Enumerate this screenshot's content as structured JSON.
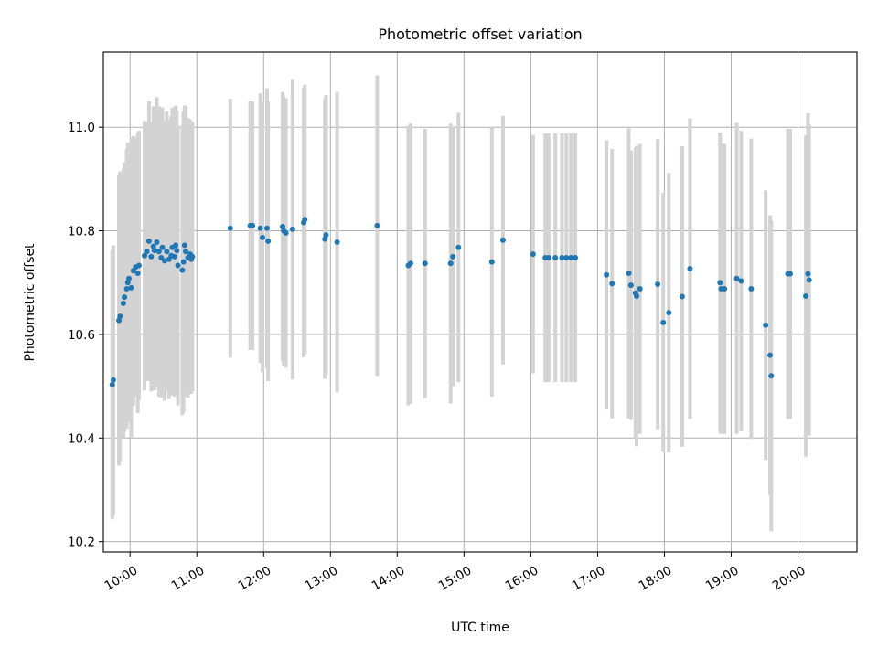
{
  "chart_data": {
    "type": "scatter",
    "title": "Photometric offset variation",
    "xlabel": "UTC time",
    "ylabel": "Photometric offset",
    "x_range": [
      "09:36",
      "20:53"
    ],
    "ylim": [
      10.18,
      11.145
    ],
    "grid": true,
    "x_ticks": [
      "10:00",
      "11:00",
      "12:00",
      "13:00",
      "14:00",
      "15:00",
      "16:00",
      "17:00",
      "18:00",
      "19:00",
      "20:00"
    ],
    "y_ticks": [
      10.2,
      10.4,
      10.6,
      10.8,
      11.0
    ],
    "y_tick_labels": [
      "10.2",
      "10.4",
      "10.6",
      "10.8",
      "11.0"
    ],
    "errorbar_color": "#d3d3d3",
    "point_color": "#1f77b4",
    "series": [
      {
        "columns": [
          "time",
          "offset",
          "error"
        ],
        "points": [
          [
            "09:44",
            10.503,
            0.26
          ],
          [
            "09:45",
            10.512,
            0.26
          ],
          [
            "09:50",
            10.627,
            0.28
          ],
          [
            "09:51",
            10.635,
            0.28
          ],
          [
            "09:54",
            10.66,
            0.26
          ],
          [
            "09:55",
            10.672,
            0.26
          ],
          [
            "09:57",
            10.688,
            0.27
          ],
          [
            "09:58",
            10.7,
            0.27
          ],
          [
            "09:59",
            10.708,
            0.26
          ],
          [
            "10:01",
            10.69,
            0.29
          ],
          [
            "10:03",
            10.723,
            0.26
          ],
          [
            "10:05",
            10.73,
            0.25
          ],
          [
            "10:07",
            10.718,
            0.27
          ],
          [
            "10:08",
            10.733,
            0.26
          ],
          [
            "10:13",
            10.752,
            0.26
          ],
          [
            "10:15",
            10.76,
            0.25
          ],
          [
            "10:17",
            10.78,
            0.27
          ],
          [
            "10:19",
            10.75,
            0.26
          ],
          [
            "10:21",
            10.77,
            0.27
          ],
          [
            "10:22",
            10.762,
            0.27
          ],
          [
            "10:24",
            10.778,
            0.28
          ],
          [
            "10:26",
            10.76,
            0.28
          ],
          [
            "10:28",
            10.748,
            0.27
          ],
          [
            "10:29",
            10.768,
            0.27
          ],
          [
            "10:31",
            10.742,
            0.27
          ],
          [
            "10:33",
            10.76,
            0.27
          ],
          [
            "10:35",
            10.745,
            0.27
          ],
          [
            "10:37",
            10.752,
            0.27
          ],
          [
            "10:38",
            10.768,
            0.27
          ],
          [
            "10:40",
            10.75,
            0.27
          ],
          [
            "10:41",
            10.772,
            0.27
          ],
          [
            "10:42",
            10.762,
            0.27
          ],
          [
            "10:43",
            10.733,
            0.27
          ],
          [
            "10:47",
            10.724,
            0.28
          ],
          [
            "10:48",
            10.74,
            0.29
          ],
          [
            "10:49",
            10.772,
            0.27
          ],
          [
            "10:50",
            10.76,
            0.28
          ],
          [
            "10:52",
            10.748,
            0.27
          ],
          [
            "10:54",
            10.755,
            0.26
          ],
          [
            "10:55",
            10.745,
            0.26
          ],
          [
            "10:56",
            10.75,
            0.26
          ],
          [
            "11:30",
            10.805,
            0.25
          ],
          [
            "11:48",
            10.81,
            0.24
          ],
          [
            "11:50",
            10.81,
            0.24
          ],
          [
            "11:57",
            10.805,
            0.26
          ],
          [
            "11:59",
            10.787,
            0.26
          ],
          [
            "12:03",
            10.805,
            0.27
          ],
          [
            "12:04",
            10.78,
            0.27
          ],
          [
            "12:17",
            10.808,
            0.26
          ],
          [
            "12:18",
            10.8,
            0.26
          ],
          [
            "12:20",
            10.796,
            0.26
          ],
          [
            "12:26",
            10.803,
            0.29
          ],
          [
            "12:36",
            10.816,
            0.26
          ],
          [
            "12:37",
            10.822,
            0.26
          ],
          [
            "12:55",
            10.784,
            0.27
          ],
          [
            "12:56",
            10.792,
            0.27
          ],
          [
            "13:06",
            10.778,
            0.29
          ],
          [
            "13:42",
            10.81,
            0.29
          ],
          [
            "14:10",
            10.733,
            0.27
          ],
          [
            "14:12",
            10.737,
            0.27
          ],
          [
            "14:25",
            10.737,
            0.26
          ],
          [
            "14:48",
            10.737,
            0.27
          ],
          [
            "14:50",
            10.75,
            0.25
          ],
          [
            "14:55",
            10.768,
            0.26
          ],
          [
            "15:25",
            10.74,
            0.26
          ],
          [
            "15:35",
            10.782,
            0.24
          ],
          [
            "16:02",
            10.755,
            0.23
          ],
          [
            "16:13",
            10.748,
            0.24
          ],
          [
            "16:16",
            10.748,
            0.24
          ],
          [
            "16:22",
            10.748,
            0.24
          ],
          [
            "16:28",
            10.748,
            0.24
          ],
          [
            "16:32",
            10.748,
            0.24
          ],
          [
            "16:36",
            10.748,
            0.24
          ],
          [
            "16:40",
            10.748,
            0.24
          ],
          [
            "17:08",
            10.715,
            0.26
          ],
          [
            "17:13",
            10.698,
            0.26
          ],
          [
            "17:28",
            10.718,
            0.28
          ],
          [
            "17:30",
            10.695,
            0.26
          ],
          [
            "17:34",
            10.68,
            0.28
          ],
          [
            "17:35",
            10.674,
            0.29
          ],
          [
            "17:38",
            10.688,
            0.28
          ],
          [
            "17:54",
            10.697,
            0.28
          ],
          [
            "17:59",
            10.623,
            0.25
          ],
          [
            "18:04",
            10.642,
            0.27
          ],
          [
            "18:16",
            10.673,
            0.29
          ],
          [
            "18:23",
            10.727,
            0.29
          ],
          [
            "18:50",
            10.7,
            0.29
          ],
          [
            "18:51",
            10.688,
            0.28
          ],
          [
            "18:54",
            10.688,
            0.28
          ],
          [
            "19:05",
            10.708,
            0.3
          ],
          [
            "19:09",
            10.703,
            0.29
          ],
          [
            "19:18",
            10.688,
            0.29
          ],
          [
            "19:31",
            10.618,
            0.26
          ],
          [
            "19:35",
            10.56,
            0.27
          ],
          [
            "19:36",
            10.52,
            0.3
          ],
          [
            "19:51",
            10.717,
            0.28
          ],
          [
            "19:53",
            10.717,
            0.28
          ],
          [
            "20:07",
            10.674,
            0.31
          ],
          [
            "20:09",
            10.717,
            0.31
          ],
          [
            "20:10",
            10.705,
            0.3
          ]
        ]
      }
    ]
  }
}
